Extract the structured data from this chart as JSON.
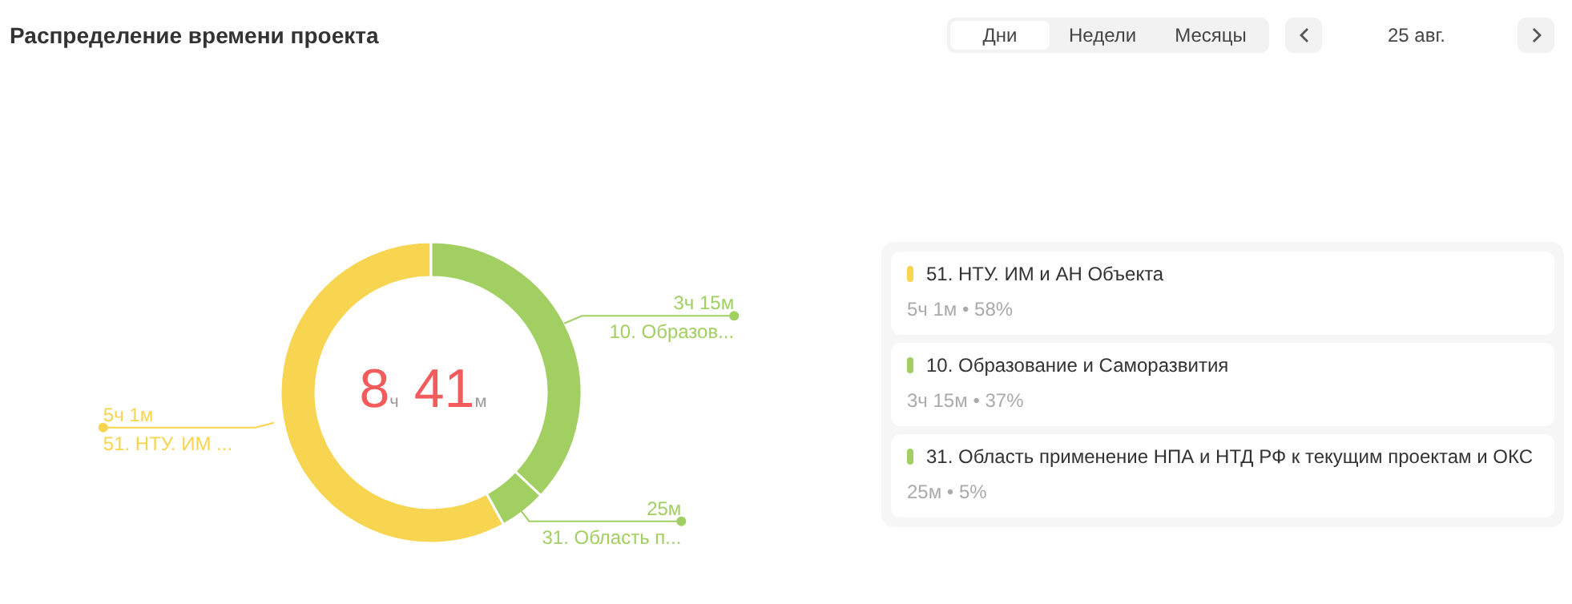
{
  "chart_data": {
    "type": "donut",
    "title": "Распределение времени проекта",
    "subtitle": "25 авг.",
    "categories": [
      "51. НТУ. ИМ и АН Объекта",
      "10. Образование и Саморазвития",
      "31. Область применение НПА и НТД РФ к текущим проектам и ОКС"
    ],
    "values": [
      58,
      37,
      5
    ],
    "colors": [
      "#f7d550",
      "#a2cf62",
      "#a2cf62"
    ],
    "legend": "right",
    "annotations": [
      "8ч 41м",
      "5ч 1м • 58%",
      "3ч 15м • 37%",
      "25м • 5%",
      "51. НТУ. ИМ ...",
      "10. Образов...",
      "31. Область п...",
      "Дни",
      "Недели",
      "Месяцы",
      "5ч 1м",
      "3ч 15м",
      "25м"
    ]
  }
}
